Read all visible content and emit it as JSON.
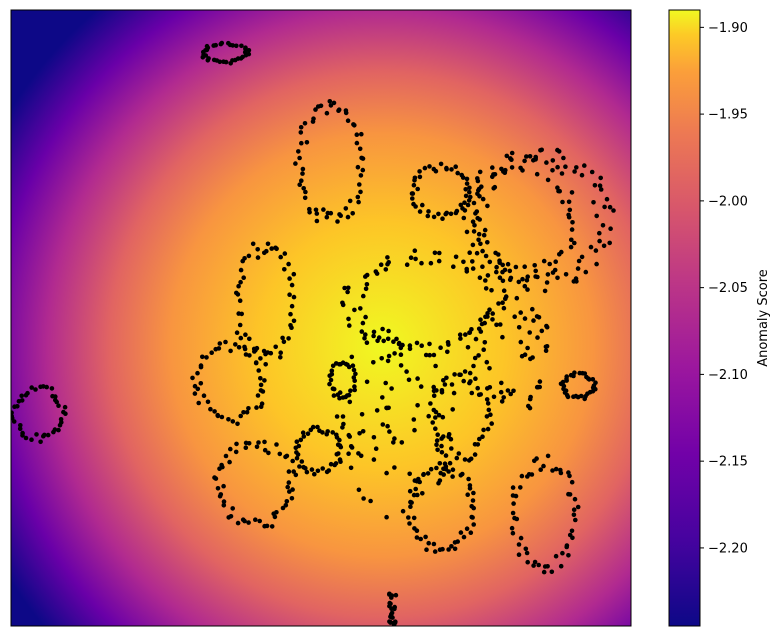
{
  "chart_data": {
    "type": "heatmap",
    "title": "",
    "xlabel": "",
    "ylabel": "",
    "axes_ticks_visible": false,
    "xlim": [
      0,
      100
    ],
    "ylim": [
      0,
      100
    ],
    "heatmap": {
      "description": "radial anomaly-score field, maximum near the centre",
      "center": [
        60,
        45
      ],
      "max_value": -1.89,
      "min_value": -2.245,
      "colormap": [
        "#0d0887",
        "#6a00a8",
        "#b12a90",
        "#e16462",
        "#fca636",
        "#f0f921"
      ]
    },
    "colorbar": {
      "label": "Anomaly Score",
      "range": [
        -2.245,
        -1.89
      ],
      "ticks": [
        -1.9,
        -1.95,
        -2.0,
        -2.05,
        -2.1,
        -2.15,
        -2.2
      ],
      "tick_labels": [
        "−1.90",
        "−1.95",
        "−2.00",
        "−2.05",
        "−2.10",
        "−2.15",
        "−2.20"
      ]
    },
    "series": [
      {
        "type": "scatter",
        "color": "#000000",
        "clusters": [
          {
            "shape": "ring",
            "cx": 34.5,
            "cy": 93,
            "rx": 3.5,
            "ry": 1.5,
            "n": 36
          },
          {
            "shape": "ring",
            "cx": 51.5,
            "cy": 75,
            "rx": 5,
            "ry": 9,
            "n": 60
          },
          {
            "shape": "ring",
            "cx": 69.5,
            "cy": 70.5,
            "rx": 4.5,
            "ry": 4,
            "n": 45
          },
          {
            "shape": "ring",
            "cx": 41,
            "cy": 52.5,
            "rx": 4.5,
            "ry": 9,
            "n": 55
          },
          {
            "shape": "ring",
            "cx": 35.5,
            "cy": 39.5,
            "rx": 5.5,
            "ry": 6,
            "n": 50
          },
          {
            "shape": "ring",
            "cx": 4.5,
            "cy": 34.5,
            "rx": 4,
            "ry": 4,
            "n": 42
          },
          {
            "shape": "ring",
            "cx": 39.5,
            "cy": 23,
            "rx": 6,
            "ry": 6.5,
            "n": 55
          },
          {
            "shape": "ring",
            "cx": 49.5,
            "cy": 28.5,
            "rx": 3.5,
            "ry": 3.5,
            "n": 40
          },
          {
            "shape": "ring",
            "cx": 53.5,
            "cy": 40,
            "rx": 2,
            "ry": 3,
            "n": 30
          },
          {
            "shape": "ring",
            "cx": 72.5,
            "cy": 34,
            "rx": 4.5,
            "ry": 6.5,
            "n": 48
          },
          {
            "shape": "ring",
            "cx": 69.5,
            "cy": 19,
            "rx": 5,
            "ry": 6.5,
            "n": 55
          },
          {
            "shape": "ring",
            "cx": 86,
            "cy": 18,
            "rx": 5,
            "ry": 8.5,
            "n": 55
          },
          {
            "shape": "ring",
            "cx": 91.5,
            "cy": 39,
            "rx": 2.5,
            "ry": 2,
            "n": 34
          },
          {
            "shape": "ring",
            "cx": 67,
            "cy": 52.5,
            "rx": 12,
            "ry": 7.5,
            "n": 85
          },
          {
            "shape": "ring",
            "cx": 85,
            "cy": 66,
            "rx": 11,
            "ry": 10.5,
            "n": 90
          },
          {
            "shape": "ring",
            "cx": 83,
            "cy": 66,
            "rx": 7.5,
            "ry": 9,
            "n": 65
          },
          {
            "shape": "cloud",
            "cx": 62,
            "cy": 33,
            "rx": 10,
            "ry": 16,
            "n": 95
          },
          {
            "shape": "cloud",
            "cx": 80,
            "cy": 44,
            "rx": 8,
            "ry": 10,
            "n": 60
          },
          {
            "shape": "line",
            "cx": 61.5,
            "cy": 3,
            "rx": 0.6,
            "ry": 3,
            "n": 22
          }
        ]
      }
    ]
  }
}
